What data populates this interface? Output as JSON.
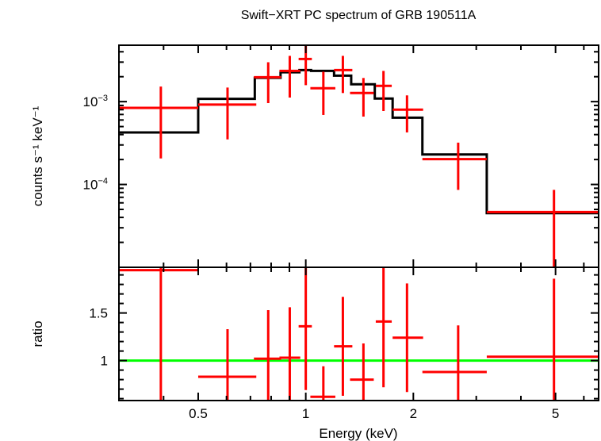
{
  "chart_data": [
    {
      "type": "scatter",
      "panel": "spectrum",
      "title": "Swift−XRT PC spectrum of GRB 190511A",
      "xlabel": "Energy (keV)",
      "ylabel": "counts s⁻¹ keV⁻¹",
      "xscale": "log",
      "yscale": "log",
      "xlim": [
        0.3,
        6.6
      ],
      "ylim": [
        1e-05,
        0.0048
      ],
      "x_ticks": [
        {
          "value": 0.5,
          "label": "0.5"
        },
        {
          "value": 1,
          "label": "1"
        },
        {
          "value": 2,
          "label": "2"
        },
        {
          "value": 5,
          "label": "5"
        }
      ],
      "y_ticks": [
        {
          "value": 0.001,
          "base": "10",
          "exp": "−3"
        },
        {
          "value": 0.0001,
          "base": "10",
          "exp": "−4"
        }
      ],
      "colors": {
        "data": "#ff0000",
        "model": "#000000"
      },
      "series": [
        {
          "kind": "data-with-errors",
          "points": [
            {
              "e_lo": 0.3,
              "e_hi": 0.5,
              "e": 0.393,
              "y": 0.00084,
              "y_lo": 0.000206,
              "y_hi": 0.00152
            },
            {
              "e_lo": 0.5,
              "e_hi": 0.727,
              "e": 0.604,
              "y": 0.00092,
              "y_lo": 0.00035,
              "y_hi": 0.00148
            },
            {
              "e_lo": 0.716,
              "e_hi": 0.853,
              "e": 0.785,
              "y": 0.00197,
              "y_lo": 0.00096,
              "y_hi": 0.00299
            },
            {
              "e_lo": 0.844,
              "e_hi": 0.965,
              "e": 0.902,
              "y": 0.00235,
              "y_lo": 0.00112,
              "y_hi": 0.00357
            },
            {
              "e_lo": 0.955,
              "e_hi": 1.04,
              "e": 1.0,
              "y": 0.00327,
              "y_lo": 0.00158,
              "y_hi": 0.00496
            },
            {
              "e_lo": 1.03,
              "e_hi": 1.21,
              "e": 1.12,
              "y": 0.00145,
              "y_lo": 0.00069,
              "y_hi": 0.0023
            },
            {
              "e_lo": 1.2,
              "e_hi": 1.35,
              "e": 1.27,
              "y": 0.0024,
              "y_lo": 0.00127,
              "y_hi": 0.00357
            },
            {
              "e_lo": 1.33,
              "e_hi": 1.55,
              "e": 1.45,
              "y": 0.00127,
              "y_lo": 0.00066,
              "y_hi": 0.00193
            },
            {
              "e_lo": 1.57,
              "e_hi": 1.74,
              "e": 1.65,
              "y": 0.00155,
              "y_lo": 0.00077,
              "y_hi": 0.00235
            },
            {
              "e_lo": 1.75,
              "e_hi": 2.13,
              "e": 1.92,
              "y": 0.0008,
              "y_lo": 0.000425,
              "y_hi": 0.00119
            },
            {
              "e_lo": 2.12,
              "e_hi": 3.21,
              "e": 2.67,
              "y": 0.000202,
              "y_lo": 8.6e-05,
              "y_hi": 0.00032
            },
            {
              "e_lo": 3.21,
              "e_hi": 6.6,
              "e": 4.95,
              "y": 4.64e-05,
              "y_lo": 1e-05,
              "y_hi": 8.6e-05
            }
          ]
        },
        {
          "kind": "model-step",
          "edges": [
            0.3,
            0.5,
            0.72,
            0.85,
            0.96,
            1.035,
            1.2,
            1.34,
            1.56,
            1.75,
            2.12,
            3.21,
            6.6
          ],
          "values": [
            0.000425,
            0.00108,
            0.00194,
            0.00226,
            0.0024,
            0.00235,
            0.00206,
            0.00162,
            0.00109,
            0.00064,
            0.00023,
            4.5e-05
          ]
        }
      ]
    },
    {
      "type": "scatter",
      "panel": "ratio",
      "ylabel": "ratio",
      "xscale": "log",
      "yscale": "linear",
      "xlim": [
        0.3,
        6.6
      ],
      "ylim": [
        0.58,
        1.98
      ],
      "y_ticks": [
        {
          "value": 1,
          "label": "1"
        },
        {
          "value": 1.5,
          "label": "1.5"
        }
      ],
      "reference_line": {
        "y": 1,
        "color": "#00ff00"
      },
      "colors": {
        "data": "#ff0000"
      },
      "points": [
        {
          "e_lo": 0.3,
          "e_hi": 0.5,
          "e": 0.393,
          "y": 1.95,
          "y_lo": 0.5,
          "y_hi": 2.1
        },
        {
          "e_lo": 0.5,
          "e_hi": 0.727,
          "e": 0.604,
          "y": 0.83,
          "y_lo": 0.5,
          "y_hi": 1.33
        },
        {
          "e_lo": 0.716,
          "e_hi": 0.853,
          "e": 0.785,
          "y": 1.02,
          "y_lo": 0.5,
          "y_hi": 1.53
        },
        {
          "e_lo": 0.844,
          "e_hi": 0.965,
          "e": 0.902,
          "y": 1.03,
          "y_lo": 0.5,
          "y_hi": 1.56
        },
        {
          "e_lo": 0.955,
          "e_hi": 1.04,
          "e": 1.0,
          "y": 1.36,
          "y_lo": 0.69,
          "y_hi": 2.1
        },
        {
          "e_lo": 1.03,
          "e_hi": 1.21,
          "e": 1.12,
          "y": 0.62,
          "y_lo": 0.5,
          "y_hi": 0.94
        },
        {
          "e_lo": 1.2,
          "e_hi": 1.35,
          "e": 1.27,
          "y": 1.15,
          "y_lo": 0.63,
          "y_hi": 1.67
        },
        {
          "e_lo": 1.33,
          "e_hi": 1.55,
          "e": 1.45,
          "y": 0.8,
          "y_lo": 0.5,
          "y_hi": 1.18
        },
        {
          "e_lo": 1.57,
          "e_hi": 1.74,
          "e": 1.65,
          "y": 1.41,
          "y_lo": 0.72,
          "y_hi": 2.1
        },
        {
          "e_lo": 1.75,
          "e_hi": 2.13,
          "e": 1.92,
          "y": 1.24,
          "y_lo": 0.67,
          "y_hi": 1.81
        },
        {
          "e_lo": 2.12,
          "e_hi": 3.21,
          "e": 2.67,
          "y": 0.88,
          "y_lo": 0.5,
          "y_hi": 1.37
        },
        {
          "e_lo": 3.21,
          "e_hi": 6.6,
          "e": 4.95,
          "y": 1.04,
          "y_lo": 0.5,
          "y_hi": 1.86
        }
      ]
    }
  ]
}
